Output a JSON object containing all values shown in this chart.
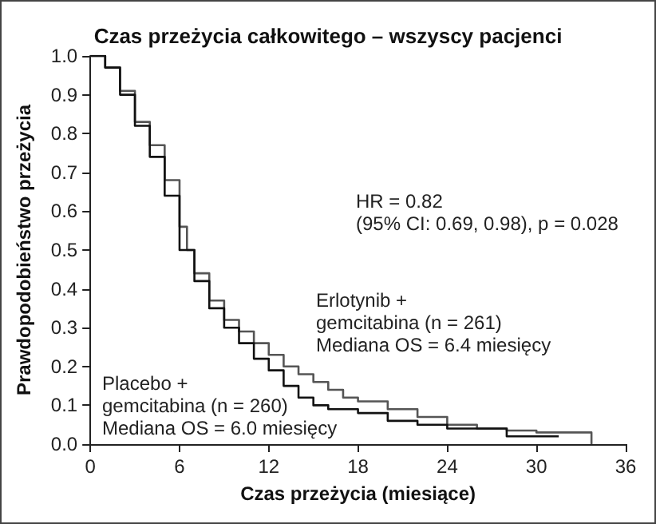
{
  "chart_data": {
    "type": "step",
    "title": "Czas przeżycia całkowitego – wszyscy pacjenci",
    "xlabel": "Czas przeżycia (miesiące)",
    "ylabel": "Prawdopodobieństwo przeżycia",
    "annotations": [
      "HR = 0.82\n(95% CI: 0.69, 0.98), p = 0.028",
      "Erlotynib +\ngemcitabina (n = 261)\nMediana OS = 6.4 miesięcy",
      "Placebo +\ngemcitabina (n = 260)\nMediana OS = 6.0 miesięcy"
    ],
    "series": [
      {
        "color": "#555555",
        "x": [
          0,
          0.5,
          1,
          2,
          3,
          4,
          5,
          6,
          6.5,
          7,
          8,
          9,
          10,
          11,
          12,
          13,
          14,
          15,
          16,
          17,
          18,
          20,
          22,
          24,
          26,
          28,
          30,
          33.7,
          33.7
        ],
        "values": [
          1,
          1,
          0.97,
          0.91,
          0.83,
          0.77,
          0.68,
          0.56,
          0.5,
          0.44,
          0.37,
          0.32,
          0.29,
          0.26,
          0.23,
          0.2,
          0.18,
          0.16,
          0.14,
          0.12,
          0.11,
          0.09,
          0.07,
          0.05,
          0.04,
          0.035,
          0.03,
          0.03,
          0
        ]
      },
      {
        "color": "#111111",
        "x": [
          0,
          0.5,
          1,
          2,
          3,
          4,
          5,
          6,
          7,
          8,
          9,
          10,
          11,
          12,
          13,
          14,
          15,
          16,
          18,
          20,
          22,
          24,
          26,
          28,
          31.5
        ],
        "values": [
          1,
          1,
          0.97,
          0.9,
          0.82,
          0.74,
          0.64,
          0.5,
          0.42,
          0.35,
          0.3,
          0.26,
          0.22,
          0.19,
          0.15,
          0.12,
          0.1,
          0.09,
          0.08,
          0.06,
          0.05,
          0.04,
          0.04,
          0.02,
          0.02
        ]
      }
    ],
    "xlim": [
      0,
      36
    ],
    "xticks": [
      0,
      6,
      12,
      18,
      24,
      30,
      36
    ],
    "ylim": [
      0,
      1
    ],
    "yticks": [
      {
        "value": 0,
        "label": "0.0"
      },
      {
        "value": 0.1,
        "label": "0.1"
      },
      {
        "value": 0.2,
        "label": "0.2"
      },
      {
        "value": 0.3,
        "label": "0.3"
      },
      {
        "value": 0.4,
        "label": "0.4"
      },
      {
        "value": 0.5,
        "label": "0.5"
      },
      {
        "value": 0.6,
        "label": "0.6"
      },
      {
        "value": 0.7,
        "label": "0.7"
      },
      {
        "value": 0.8,
        "label": "0.8"
      },
      {
        "value": 0.9,
        "label": "0.9"
      },
      {
        "value": 1,
        "label": "1.0"
      }
    ],
    "grid": false,
    "marker": "none",
    "line_style": "solid"
  }
}
